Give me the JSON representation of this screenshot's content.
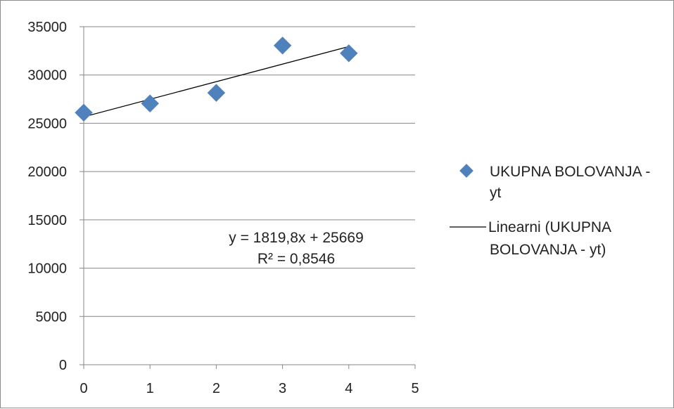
{
  "chart_data": {
    "type": "scatter",
    "x_ticks": [
      "0",
      "1",
      "2",
      "3",
      "4",
      "5"
    ],
    "y_ticks": [
      "0",
      "5000",
      "10000",
      "15000",
      "20000",
      "25000",
      "30000",
      "35000"
    ],
    "xlim": [
      0,
      5
    ],
    "ylim": [
      0,
      35000
    ],
    "grid": "horizontal",
    "series": [
      {
        "name": "UKUPNA BOLOVANJA - yt",
        "marker": "diamond",
        "color": "#4f81bd",
        "x": [
          0,
          1,
          2,
          3,
          4
        ],
        "y": [
          26100,
          27050,
          28150,
          33050,
          32250
        ]
      }
    ],
    "trendline": {
      "name": "Linearni (UKUPNA BOLOVANJA - yt)",
      "color": "#000000",
      "slope": 1819.8,
      "intercept": 25669,
      "x_range": [
        0,
        4
      ],
      "equation": "y = 1819,8x + 25669",
      "r_squared": "R² = 0,8546"
    },
    "legend": {
      "position": "right",
      "entries": [
        {
          "lines": [
            "UKUPNA BOLOVANJA -",
            "yt"
          ]
        },
        {
          "lines": [
            "Linearni (UKUPNA",
            "BOLOVANJA - yt)"
          ]
        }
      ]
    }
  }
}
